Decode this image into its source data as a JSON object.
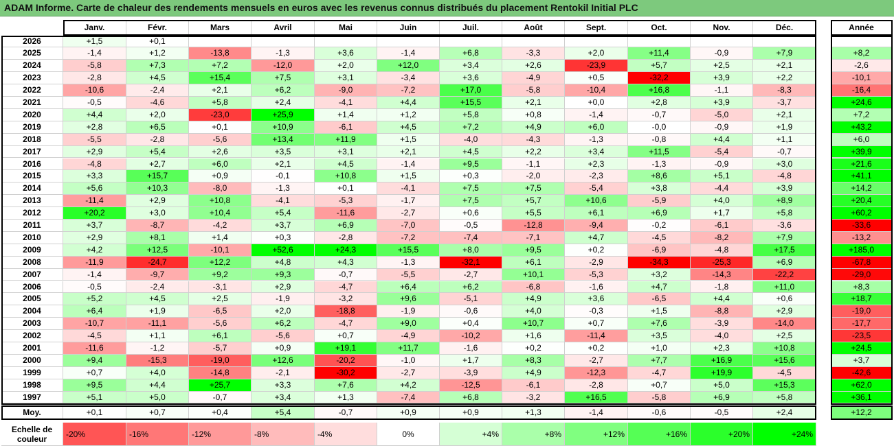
{
  "title": "ADAM Informe. Carte de chaleur des rendements mensuels en euros avec les revenus connus distribués du placement Rentokil Initial PLC",
  "chart_data": {
    "type": "heatmap",
    "months": [
      "Janv.",
      "Févr.",
      "Mars",
      "Avril",
      "Mai",
      "Juin",
      "Juil.",
      "Août",
      "Sept.",
      "Oct.",
      "Nov.",
      "Déc."
    ],
    "annual_header": "Année",
    "avg_label": "Moy.",
    "rows": [
      {
        "year": "2026",
        "values": [
          "+1,5",
          "+0,1",
          "",
          "",
          "",
          "",
          "",
          "",
          "",
          "",
          "",
          ""
        ],
        "annual": ""
      },
      {
        "year": "2025",
        "values": [
          "-1,4",
          "+1,2",
          "-13,8",
          "-1,3",
          "+3,6",
          "-1,4",
          "+6,8",
          "-3,3",
          "+2,0",
          "+11,4",
          "-0,9",
          "+7,9"
        ],
        "annual": "+8,2"
      },
      {
        "year": "2024",
        "values": [
          "-5,8",
          "+7,3",
          "+7,2",
          "-12,0",
          "+2,0",
          "+12,0",
          "+3,4",
          "+2,6",
          "-23,9",
          "+5,7",
          "+2,5",
          "+2,1"
        ],
        "annual": "-2,6"
      },
      {
        "year": "2023",
        "values": [
          "-2,8",
          "+4,5",
          "+15,4",
          "+7,5",
          "+3,1",
          "-3,4",
          "+3,6",
          "-4,9",
          "+0,5",
          "-32,2",
          "+3,9",
          "+2,2"
        ],
        "annual": "-10,1"
      },
      {
        "year": "2022",
        "values": [
          "-10,6",
          "-2,4",
          "+2,1",
          "+6,2",
          "-9,0",
          "-7,2",
          "+17,0",
          "-5,8",
          "-10,4",
          "+16,8",
          "-1,1",
          "-8,3"
        ],
        "annual": "-16,4"
      },
      {
        "year": "2021",
        "values": [
          "-0,5",
          "-4,6",
          "+5,8",
          "+2,4",
          "-4,1",
          "+4,4",
          "+15,5",
          "+2,1",
          "+0,0",
          "+2,8",
          "+3,9",
          "-3,7"
        ],
        "annual": "+24,6"
      },
      {
        "year": "2020",
        "values": [
          "+4,4",
          "+2,0",
          "-23,0",
          "+25,9",
          "+1,4",
          "+1,2",
          "+5,8",
          "+0,8",
          "-1,4",
          "-0,7",
          "-5,0",
          "+2,1"
        ],
        "annual": "+7,2"
      },
      {
        "year": "2019",
        "values": [
          "+2,8",
          "+6,5",
          "+0,1",
          "+10,9",
          "-6,1",
          "+4,5",
          "+7,2",
          "+4,9",
          "+6,0",
          "-0,0",
          "-0,9",
          "+1,9"
        ],
        "annual": "+43,2"
      },
      {
        "year": "2018",
        "values": [
          "-5,5",
          "-2,8",
          "-5,6",
          "+13,4",
          "+11,9",
          "+1,5",
          "-4,0",
          "-4,3",
          "-1,3",
          "-0,8",
          "+4,4",
          "+1,1"
        ],
        "annual": "+6,0"
      },
      {
        "year": "2017",
        "values": [
          "+2,9",
          "+5,4",
          "+2,6",
          "+3,5",
          "+3,1",
          "+2,1",
          "+4,5",
          "+2,2",
          "+3,4",
          "+11,5",
          "-5,4",
          "-0,7"
        ],
        "annual": "+39,9"
      },
      {
        "year": "2016",
        "values": [
          "-4,8",
          "+2,7",
          "+6,0",
          "+2,1",
          "+4,5",
          "-1,4",
          "+9,5",
          "-1,1",
          "+2,3",
          "-1,3",
          "-0,9",
          "+3,0"
        ],
        "annual": "+21,6"
      },
      {
        "year": "2015",
        "values": [
          "+3,3",
          "+15,7",
          "+0,9",
          "-0,1",
          "+10,8",
          "+1,5",
          "+0,3",
          "-2,0",
          "-2,3",
          "+8,6",
          "+5,1",
          "-4,8"
        ],
        "annual": "+41,1"
      },
      {
        "year": "2014",
        "values": [
          "+5,6",
          "+10,3",
          "-8,0",
          "-1,3",
          "+0,1",
          "-4,1",
          "+7,5",
          "+7,5",
          "-5,4",
          "+3,8",
          "-4,4",
          "+3,9"
        ],
        "annual": "+14,2"
      },
      {
        "year": "2013",
        "values": [
          "-11,4",
          "+2,9",
          "+10,8",
          "-4,1",
          "-5,3",
          "-1,7",
          "+7,5",
          "+5,7",
          "+10,6",
          "-5,9",
          "+4,0",
          "+8,9"
        ],
        "annual": "+20,4"
      },
      {
        "year": "2012",
        "values": [
          "+20,2",
          "+3,0",
          "+10,4",
          "+5,4",
          "-11,6",
          "-2,7",
          "+0,6",
          "+5,5",
          "+6,1",
          "+6,9",
          "+1,7",
          "+5,8"
        ],
        "annual": "+60,2"
      },
      {
        "year": "2011",
        "values": [
          "+3,7",
          "-8,7",
          "-4,2",
          "+3,7",
          "+6,9",
          "-7,0",
          "-0,5",
          "-12,8",
          "-9,4",
          "-0,2",
          "-6,1",
          "-3,6"
        ],
        "annual": "-33,6"
      },
      {
        "year": "2010",
        "values": [
          "+2,9",
          "+8,1",
          "+1,4",
          "+0,3",
          "-2,8",
          "-7,2",
          "-7,4",
          "-7,1",
          "+4,7",
          "-4,5",
          "-8,2",
          "+7,9"
        ],
        "annual": "-13,2"
      },
      {
        "year": "2009",
        "values": [
          "+4,2",
          "+12,5",
          "-10,1",
          "+52,6",
          "+24,3",
          "+15,5",
          "+8,0",
          "+9,5",
          "+0,2",
          "-6,9",
          "-4,8",
          "+17,5"
        ],
        "annual": "+185,0"
      },
      {
        "year": "2008",
        "values": [
          "-11,9",
          "-24,7",
          "+12,2",
          "+4,8",
          "+4,3",
          "-1,3",
          "-32,1",
          "+6,1",
          "-2,9",
          "-34,3",
          "-25,3",
          "+6,9"
        ],
        "annual": "-67,8"
      },
      {
        "year": "2007",
        "values": [
          "-1,4",
          "-9,7",
          "+9,2",
          "+9,3",
          "-0,7",
          "-5,5",
          "-2,7",
          "+10,1",
          "-5,3",
          "+3,2",
          "-14,3",
          "-22,2"
        ],
        "annual": "-29,0"
      },
      {
        "year": "2006",
        "values": [
          "-0,5",
          "-2,4",
          "-3,1",
          "+2,9",
          "-4,7",
          "+6,4",
          "+6,2",
          "-6,8",
          "-1,6",
          "+4,7",
          "-1,8",
          "+11,0"
        ],
        "annual": "+8,3"
      },
      {
        "year": "2005",
        "values": [
          "+5,2",
          "+4,5",
          "+2,5",
          "-1,9",
          "-3,2",
          "+9,6",
          "-5,1",
          "+4,9",
          "+3,6",
          "-6,5",
          "+4,4",
          "+0,6"
        ],
        "annual": "+18,7"
      },
      {
        "year": "2004",
        "values": [
          "+6,4",
          "+1,9",
          "-6,5",
          "+2,0",
          "-18,8",
          "-1,9",
          "-0,6",
          "+4,0",
          "-0,3",
          "+1,5",
          "-8,8",
          "+2,9"
        ],
        "annual": "-19,0"
      },
      {
        "year": "2003",
        "values": [
          "-10,7",
          "-11,1",
          "-5,6",
          "+6,2",
          "-4,7",
          "+9,0",
          "+0,4",
          "+10,7",
          "+0,7",
          "+7,6",
          "-3,9",
          "-14,0"
        ],
        "annual": "-17,7"
      },
      {
        "year": "2002",
        "values": [
          "-4,5",
          "+1,1",
          "+6,1",
          "-5,6",
          "+0,7",
          "-4,9",
          "-10,2",
          "+1,6",
          "-11,4",
          "+3,5",
          "-4,0",
          "+2,5"
        ],
        "annual": "-23,5"
      },
      {
        "year": "2001",
        "values": [
          "-11,6",
          "-1,2",
          "-5,7",
          "+0,9",
          "+19,1",
          "+11,7",
          "-1,6",
          "+0,2",
          "+0,2",
          "+1,0",
          "+2,3",
          "+10,8"
        ],
        "annual": "+24,5"
      },
      {
        "year": "2000",
        "values": [
          "+9,4",
          "-15,3",
          "-19,0",
          "+12,6",
          "-20,2",
          "-1,0",
          "+1,7",
          "+8,3",
          "-2,7",
          "+7,7",
          "+16,9",
          "+15,6"
        ],
        "annual": "+3,7"
      },
      {
        "year": "1999",
        "values": [
          "+0,7",
          "+4,0",
          "-14,8",
          "-2,1",
          "-30,2",
          "-2,7",
          "-3,9",
          "+4,9",
          "-12,3",
          "-4,7",
          "+19,9",
          "-4,5"
        ],
        "annual": "-42,6"
      },
      {
        "year": "1998",
        "values": [
          "+9,5",
          "+4,4",
          "+25,7",
          "+3,3",
          "+7,6",
          "+4,2",
          "-12,5",
          "-6,1",
          "-2,8",
          "+0,7",
          "+5,0",
          "+15,3"
        ],
        "annual": "+62,0"
      },
      {
        "year": "1997",
        "values": [
          "+5,1",
          "+5,0",
          "-0,7",
          "+3,4",
          "+1,3",
          "-7,4",
          "+6,8",
          "-3,2",
          "+16,5",
          "-5,8",
          "+6,9",
          "+5,8"
        ],
        "annual": "+36,1"
      }
    ],
    "averages": {
      "values": [
        "+0,1",
        "+0,7",
        "+0,4",
        "+5,4",
        "-0,7",
        "+0,9",
        "+0,9",
        "+1,3",
        "-1,4",
        "-0,6",
        "-0,5",
        "+2,4"
      ],
      "annual": "+12,2"
    },
    "color_scale": {
      "label": "Echelle de couleur",
      "steps": [
        "-20%",
        "-16%",
        "-12%",
        "-8%",
        "-4%",
        "0%",
        "+4%",
        "+8%",
        "+12%",
        "+16%",
        "+20%",
        "+24%"
      ],
      "negative_color": "#ff0000",
      "neutral_color": "#ffffff",
      "positive_color": "#00ff00"
    }
  }
}
